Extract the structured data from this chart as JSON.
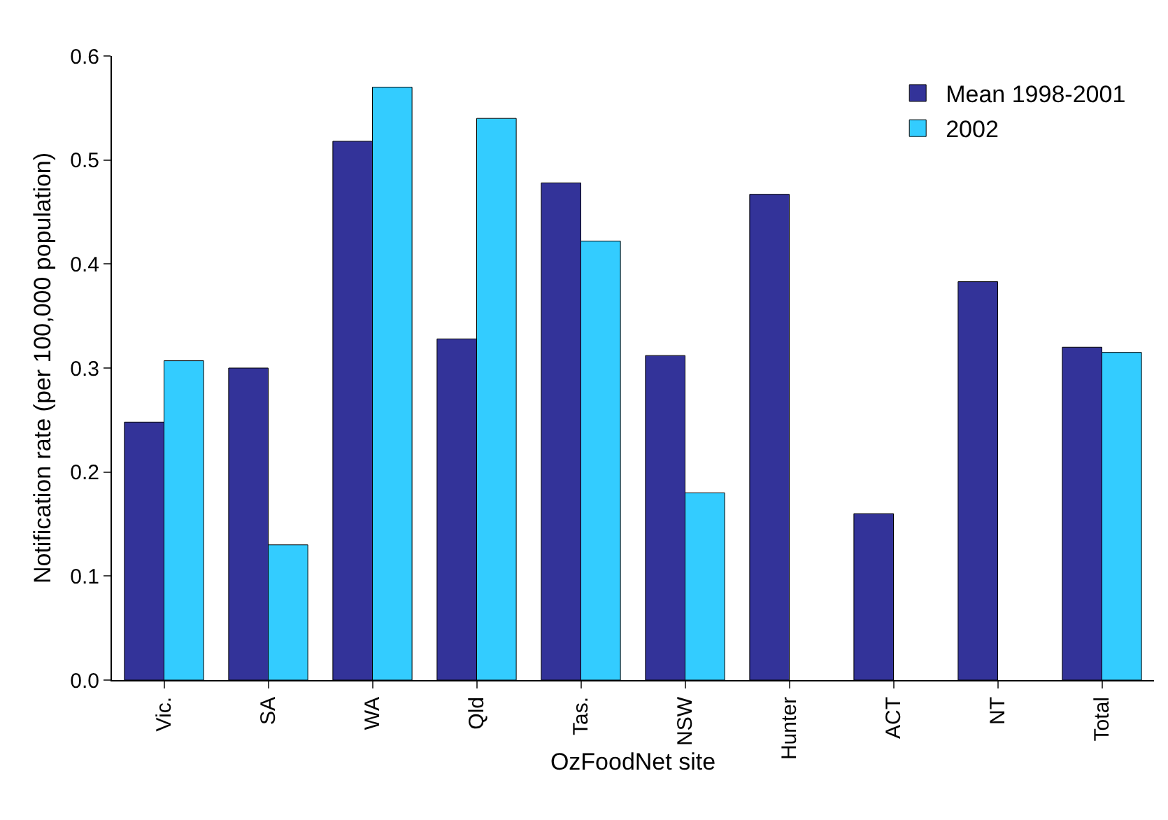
{
  "chart_data": {
    "type": "bar",
    "xlabel": "OzFoodNet site",
    "ylabel": "Notification rate (per 100,000 population)",
    "categories": [
      "Vic.",
      "SA",
      "WA",
      "Qld",
      "Tas.",
      "NSW",
      "Hunter",
      "ACT",
      "NT",
      "Total"
    ],
    "series": [
      {
        "name": "Mean 1998-2001",
        "color": "#333399",
        "values": [
          0.248,
          0.3,
          0.518,
          0.328,
          0.478,
          0.312,
          0.467,
          0.16,
          0.383,
          0.32
        ]
      },
      {
        "name": "2002",
        "color": "#33ccff",
        "values": [
          0.307,
          0.13,
          0.57,
          0.54,
          0.422,
          0.18,
          null,
          null,
          null,
          0.315
        ]
      }
    ],
    "ylim": [
      0,
      0.6
    ],
    "yticks": [
      {
        "value": 0,
        "label": "0.0"
      },
      0.1,
      0.2,
      0.3,
      0.4,
      0.5,
      0.6
    ],
    "grid": false,
    "legend": "top right"
  }
}
